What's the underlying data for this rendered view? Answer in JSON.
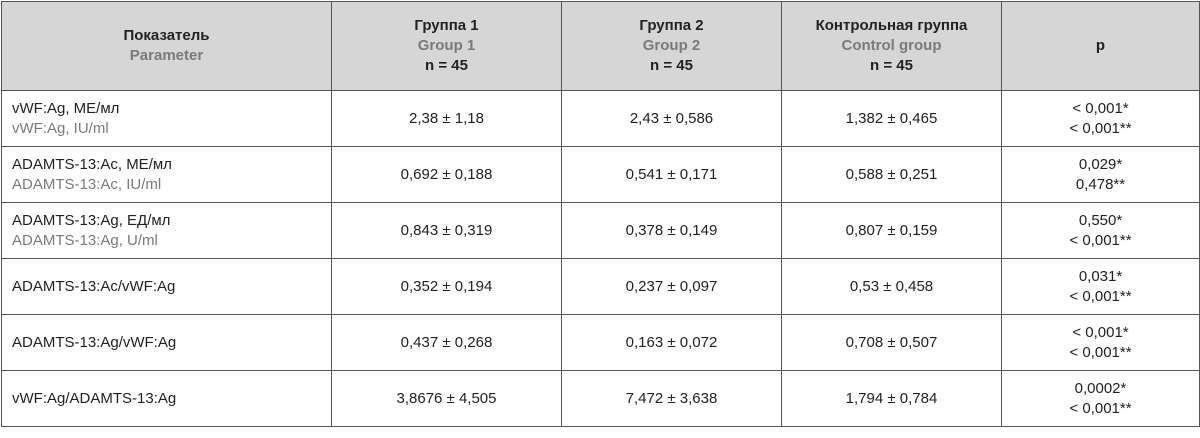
{
  "table": {
    "header": [
      {
        "title": "Показатель",
        "subtitle": "Parameter"
      },
      {
        "title": "Группа 1",
        "subtitle": "Group 1",
        "n": "n = 45"
      },
      {
        "title": "Группа 2",
        "subtitle": "Group 2",
        "n": "n = 45"
      },
      {
        "title": "Контрольная группа",
        "subtitle": "Control group",
        "n": "n = 45"
      },
      {
        "title": "p"
      }
    ],
    "rows": [
      {
        "parameter": [
          "vWF:Ag, МЕ/мл",
          "vWF:Ag, IU/ml"
        ],
        "values": [
          "2,38 ± 1,18",
          "2,43 ± 0,586",
          "1,382 ± 0,465"
        ],
        "p": [
          "< 0,001*",
          "< 0,001**"
        ]
      },
      {
        "parameter": [
          "ADAMTS-13:Ac, МЕ/мл",
          "ADAMTS-13:Ac, IU/ml"
        ],
        "values": [
          "0,692 ± 0,188",
          "0,541 ± 0,171",
          "0,588 ± 0,251"
        ],
        "p": [
          "0,029*",
          "0,478**"
        ]
      },
      {
        "parameter": [
          "ADAMTS-13:Ag, ЕД/мл",
          "ADAMTS-13:Ag, U/ml"
        ],
        "values": [
          "0,843 ± 0,319",
          "0,378 ± 0,149",
          "0,807 ± 0,159"
        ],
        "p": [
          "0,550*",
          "< 0,001**"
        ]
      },
      {
        "parameter": [
          "ADAMTS-13:Ac/vWF:Ag"
        ],
        "values": [
          "0,352 ± 0,194",
          "0,237 ± 0,097",
          "0,53 ± 0,458"
        ],
        "p": [
          "0,031*",
          "< 0,001**"
        ]
      },
      {
        "parameter": [
          "ADAMTS-13:Ag/vWF:Ag"
        ],
        "values": [
          "0,437 ± 0,268",
          "0,163 ± 0,072",
          "0,708 ± 0,507"
        ],
        "p": [
          "< 0,001*",
          "< 0,001**"
        ]
      },
      {
        "parameter": [
          "vWF:Ag/ADAMTS-13:Ag"
        ],
        "values": [
          "3,8676 ± 4,505",
          "7,472 ± 3,638",
          "1,794 ± 0,784"
        ],
        "p": [
          "0,0002*",
          "< 0,001**"
        ]
      }
    ]
  }
}
